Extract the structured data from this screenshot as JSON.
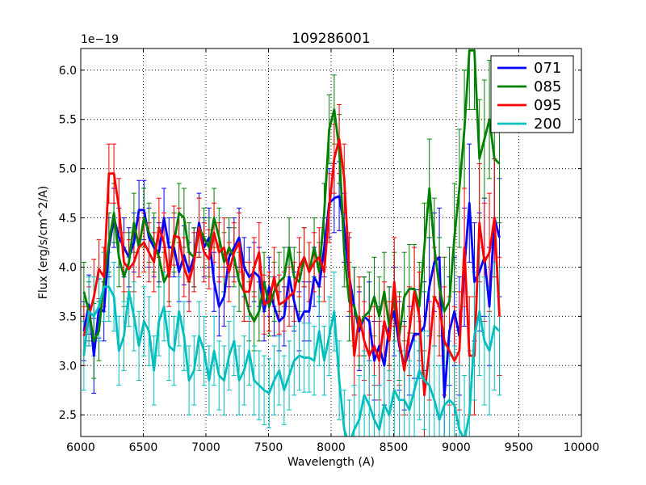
{
  "chart_data": {
    "type": "line",
    "title": "109286001",
    "xlabel": "Wavelength (A)",
    "ylabel": "Flux (erg/s/cm^2/A)",
    "offset_label": "1e−19",
    "xlim": [
      6000,
      10000
    ],
    "ylim": [
      2.28,
      6.22
    ],
    "xticks": [
      6000,
      6500,
      7000,
      7500,
      8000,
      8500,
      9000,
      9500,
      10000
    ],
    "xtick_labels": [
      "6000",
      "6500",
      "7000",
      "7500",
      "8000",
      "8500",
      "9000",
      "9500",
      "10000"
    ],
    "yticks": [
      2.5,
      3.0,
      3.5,
      4.0,
      4.5,
      5.0,
      5.5,
      6.0
    ],
    "ytick_labels": [
      "2.5",
      "3.0",
      "3.5",
      "4.0",
      "4.5",
      "5.0",
      "5.5",
      "6.0"
    ],
    "grid": true,
    "legend_position": "top-right",
    "x_step": 40,
    "series": [
      {
        "name": "071",
        "color": "#0000ff",
        "values": [
          3.35,
          3.62,
          3.1,
          3.58,
          3.55,
          4.2,
          4.5,
          4.3,
          4.2,
          4.1,
          4.25,
          4.58,
          4.58,
          4.3,
          4.2,
          4.15,
          4.5,
          4.2,
          4.2,
          3.95,
          4.12,
          3.95,
          4.1,
          4.45,
          4.2,
          4.3,
          3.85,
          3.6,
          3.7,
          4.1,
          4.2,
          4.3,
          4.0,
          3.9,
          3.95,
          3.9,
          3.55,
          3.8,
          3.6,
          3.45,
          3.5,
          3.9,
          3.65,
          3.45,
          3.55,
          3.55,
          3.9,
          3.8,
          4.2,
          4.65,
          4.7,
          4.72,
          4.4,
          3.9,
          3.6,
          3.35,
          3.5,
          3.45,
          3.05,
          3.2,
          3.0,
          3.4,
          3.55,
          3.2,
          3.0,
          3.15,
          3.32,
          3.32,
          3.4,
          3.8,
          4.05,
          4.1,
          2.68,
          3.35,
          3.55,
          3.3,
          4.0,
          4.65,
          3.85,
          3.95,
          4.1,
          3.6,
          4.5,
          4.3
        ],
        "errors": [
          0.3,
          0.3,
          0.38,
          0.3,
          0.3,
          0.3,
          0.3,
          0.3,
          0.3,
          0.3,
          0.3,
          0.3,
          0.3,
          0.3,
          0.3,
          0.3,
          0.3,
          0.3,
          0.3,
          0.3,
          0.3,
          0.3,
          0.3,
          0.3,
          0.3,
          0.3,
          0.3,
          0.3,
          0.3,
          0.3,
          0.3,
          0.3,
          0.3,
          0.3,
          0.3,
          0.3,
          0.3,
          0.3,
          0.3,
          0.3,
          0.3,
          0.3,
          0.3,
          0.3,
          0.3,
          0.3,
          0.3,
          0.3,
          0.3,
          0.35,
          0.35,
          0.35,
          0.35,
          0.4,
          0.4,
          0.4,
          0.4,
          0.4,
          0.4,
          0.4,
          0.4,
          0.4,
          0.45,
          0.45,
          0.45,
          0.45,
          0.45,
          0.45,
          0.45,
          0.5,
          0.5,
          0.5,
          0.55,
          0.55,
          0.55,
          0.6,
          0.6,
          0.6,
          0.6,
          0.6,
          0.6,
          0.6,
          0.6,
          0.6
        ]
      },
      {
        "name": "085",
        "color": "#008000",
        "values": [
          3.75,
          3.55,
          3.25,
          3.35,
          3.85,
          4.25,
          4.55,
          4.1,
          3.9,
          4.05,
          4.45,
          4.2,
          4.5,
          4.35,
          4.25,
          4.1,
          3.85,
          3.95,
          4.25,
          4.55,
          4.5,
          4.15,
          4.1,
          4.4,
          4.3,
          4.2,
          4.5,
          4.3,
          4.05,
          4.2,
          4.1,
          3.85,
          3.75,
          3.55,
          3.45,
          3.55,
          3.85,
          3.6,
          3.75,
          3.85,
          3.9,
          4.2,
          3.9,
          3.85,
          4.1,
          3.95,
          4.2,
          3.95,
          4.55,
          5.4,
          5.6,
          5.2,
          4.15,
          3.65,
          3.6,
          3.4,
          3.5,
          3.55,
          3.7,
          3.5,
          3.75,
          3.4,
          3.7,
          3.3,
          3.7,
          3.78,
          3.78,
          3.6,
          4.2,
          4.8,
          4.2,
          3.8,
          3.55,
          3.65,
          4.3,
          4.8,
          5.4,
          6.2,
          6.2,
          5.1,
          5.3,
          5.5,
          5.1,
          5.05
        ],
        "errors": [
          0.3,
          0.3,
          0.38,
          0.3,
          0.3,
          0.3,
          0.3,
          0.3,
          0.3,
          0.3,
          0.3,
          0.3,
          0.3,
          0.3,
          0.3,
          0.3,
          0.3,
          0.3,
          0.3,
          0.3,
          0.3,
          0.3,
          0.3,
          0.3,
          0.3,
          0.3,
          0.3,
          0.3,
          0.3,
          0.3,
          0.3,
          0.3,
          0.3,
          0.3,
          0.3,
          0.3,
          0.3,
          0.3,
          0.3,
          0.3,
          0.3,
          0.3,
          0.3,
          0.3,
          0.3,
          0.3,
          0.3,
          0.3,
          0.3,
          0.35,
          0.35,
          0.35,
          0.35,
          0.4,
          0.4,
          0.4,
          0.4,
          0.4,
          0.4,
          0.4,
          0.4,
          0.4,
          0.45,
          0.45,
          0.45,
          0.45,
          0.45,
          0.45,
          0.45,
          0.5,
          0.5,
          0.5,
          0.55,
          0.55,
          0.55,
          0.6,
          0.6,
          0.6,
          0.6,
          0.6,
          0.6,
          0.6,
          0.6,
          0.6
        ]
      },
      {
        "name": "095",
        "color": "#ff0000",
        "values": [
          3.3,
          3.5,
          3.7,
          3.98,
          3.9,
          4.95,
          4.95,
          4.6,
          4.05,
          3.98,
          4.05,
          4.2,
          4.25,
          4.15,
          4.05,
          4.4,
          4.25,
          3.9,
          4.32,
          4.3,
          4.0,
          3.85,
          4.05,
          4.4,
          4.15,
          4.08,
          4.35,
          4.15,
          4.2,
          3.95,
          4.15,
          4.25,
          3.75,
          3.75,
          4.0,
          4.15,
          3.62,
          3.65,
          3.9,
          3.62,
          3.65,
          3.7,
          3.75,
          4.0,
          4.1,
          3.95,
          4.05,
          4.1,
          3.95,
          4.6,
          5.1,
          5.3,
          4.9,
          3.95,
          3.1,
          3.5,
          3.25,
          3.1,
          3.2,
          3.05,
          3.45,
          3.25,
          3.85,
          3.25,
          2.95,
          3.35,
          3.75,
          3.5,
          2.7,
          3.15,
          3.7,
          3.6,
          3.25,
          3.15,
          3.05,
          3.15,
          4.2,
          3.1,
          3.1,
          4.45,
          4.05,
          4.15,
          4.5,
          3.5
        ],
        "errors": [
          0.3,
          0.3,
          0.38,
          0.3,
          0.3,
          0.3,
          0.3,
          0.3,
          0.3,
          0.3,
          0.3,
          0.3,
          0.3,
          0.3,
          0.3,
          0.3,
          0.3,
          0.3,
          0.3,
          0.3,
          0.3,
          0.3,
          0.3,
          0.3,
          0.3,
          0.3,
          0.3,
          0.3,
          0.3,
          0.3,
          0.3,
          0.3,
          0.3,
          0.3,
          0.3,
          0.3,
          0.3,
          0.3,
          0.3,
          0.3,
          0.3,
          0.3,
          0.3,
          0.3,
          0.3,
          0.3,
          0.3,
          0.3,
          0.3,
          0.35,
          0.35,
          0.35,
          0.35,
          0.4,
          0.4,
          0.4,
          0.4,
          0.4,
          0.4,
          0.4,
          0.4,
          0.4,
          0.45,
          0.45,
          0.45,
          0.45,
          0.45,
          0.45,
          0.45,
          0.5,
          0.5,
          0.5,
          0.55,
          0.55,
          0.55,
          0.6,
          0.6,
          0.6,
          0.6,
          0.6,
          0.6,
          0.6,
          0.6,
          0.6
        ]
      },
      {
        "name": "200",
        "color": "#00bfbf",
        "values": [
          3.1,
          3.55,
          3.5,
          3.6,
          3.8,
          3.8,
          3.7,
          3.15,
          3.3,
          3.75,
          3.5,
          3.2,
          3.45,
          3.35,
          2.95,
          3.45,
          3.6,
          3.2,
          3.15,
          3.55,
          3.3,
          2.85,
          2.95,
          3.3,
          3.15,
          2.85,
          3.15,
          2.9,
          2.85,
          3.1,
          3.25,
          2.85,
          2.95,
          3.15,
          2.85,
          2.8,
          2.75,
          2.72,
          2.85,
          2.95,
          2.75,
          2.9,
          3.05,
          3.1,
          3.08,
          3.08,
          3.05,
          3.35,
          3.05,
          3.3,
          3.55,
          2.85,
          2.35,
          2.2,
          2.35,
          2.45,
          2.7,
          2.6,
          2.45,
          2.35,
          2.6,
          2.5,
          2.75,
          2.65,
          2.65,
          2.55,
          2.75,
          2.95,
          2.85,
          2.8,
          2.65,
          2.45,
          2.6,
          2.65,
          2.6,
          2.35,
          2.25,
          2.5,
          3.3,
          3.55,
          3.25,
          3.15,
          3.4,
          3.35
        ],
        "errors": [
          0.35,
          0.35,
          0.4,
          0.35,
          0.35,
          0.35,
          0.35,
          0.35,
          0.35,
          0.35,
          0.35,
          0.35,
          0.35,
          0.35,
          0.35,
          0.35,
          0.35,
          0.35,
          0.35,
          0.35,
          0.35,
          0.35,
          0.35,
          0.35,
          0.35,
          0.35,
          0.35,
          0.35,
          0.35,
          0.35,
          0.35,
          0.35,
          0.35,
          0.35,
          0.35,
          0.35,
          0.35,
          0.35,
          0.35,
          0.35,
          0.35,
          0.35,
          0.35,
          0.35,
          0.35,
          0.35,
          0.35,
          0.35,
          0.35,
          0.4,
          0.4,
          0.4,
          0.4,
          0.45,
          0.45,
          0.45,
          0.45,
          0.45,
          0.45,
          0.45,
          0.45,
          0.45,
          0.5,
          0.5,
          0.5,
          0.5,
          0.5,
          0.5,
          0.5,
          0.55,
          0.55,
          0.55,
          0.6,
          0.6,
          0.6,
          0.65,
          0.65,
          0.65,
          0.65,
          0.65,
          0.65,
          0.65,
          0.65,
          0.65
        ]
      }
    ]
  }
}
